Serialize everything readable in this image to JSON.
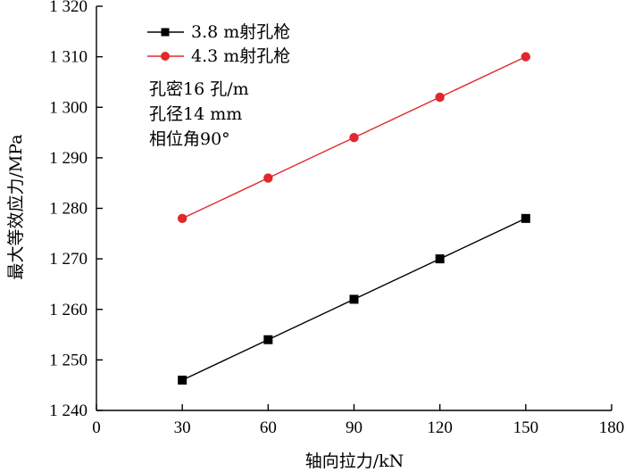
{
  "chart_data": {
    "type": "line",
    "title": "",
    "xlabel": "轴向拉力/kN",
    "ylabel": "最大等效应力/MPa",
    "xlim": [
      0,
      180
    ],
    "ylim": [
      1240,
      1320
    ],
    "xticks": [
      0,
      30,
      60,
      90,
      120,
      150,
      180
    ],
    "yticks": [
      1240,
      1250,
      1260,
      1270,
      1280,
      1290,
      1300,
      1310,
      1320
    ],
    "xtick_labels": [
      "0",
      "30",
      "60",
      "90",
      "120",
      "150",
      "180"
    ],
    "ytick_labels": [
      "1 240",
      "1 250",
      "1 260",
      "1 270",
      "1 280",
      "1 290",
      "1 300",
      "1 310",
      "1 320"
    ],
    "grid": false,
    "legend_position": "top-left",
    "x": [
      30,
      60,
      90,
      120,
      150
    ],
    "series": [
      {
        "name": "3.8 m射孔枪",
        "values": [
          1246,
          1254,
          1262,
          1270,
          1278
        ],
        "color": "#000000",
        "marker": "square"
      },
      {
        "name": "4.3 m射孔枪",
        "values": [
          1278,
          1286,
          1294,
          1302,
          1310
        ],
        "color": "#e0282d",
        "marker": "circle"
      }
    ],
    "annotations": [
      "孔密16 孔/m",
      "孔径14 mm",
      "相位角90°"
    ]
  }
}
